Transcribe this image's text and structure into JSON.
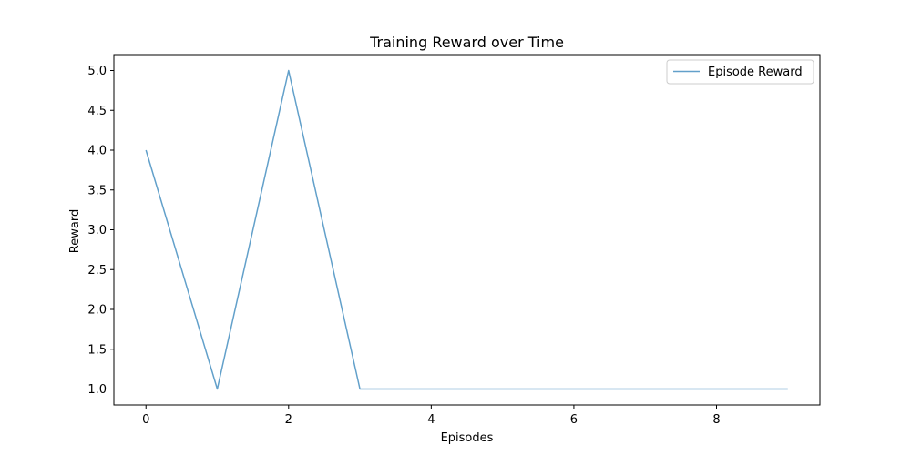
{
  "chart_data": {
    "type": "line",
    "title": "Training Reward over Time",
    "xlabel": "Episodes",
    "ylabel": "Reward",
    "x": [
      0,
      1,
      2,
      3,
      4,
      5,
      6,
      7,
      8,
      9
    ],
    "series": [
      {
        "name": "Episode Reward",
        "values": [
          4,
          1,
          5,
          1,
          1,
          1,
          1,
          1,
          1,
          1
        ],
        "color": "#1f77b4"
      }
    ],
    "xlim": [
      -0.45,
      9.45
    ],
    "ylim": [
      0.8,
      5.2
    ],
    "xticks": [
      0,
      2,
      4,
      6,
      8
    ],
    "xtick_labels": [
      "0",
      "2",
      "4",
      "6",
      "8"
    ],
    "yticks": [
      1.0,
      1.5,
      2.0,
      2.5,
      3.0,
      3.5,
      4.0,
      4.5,
      5.0
    ],
    "ytick_labels": [
      "1.0",
      "1.5",
      "2.0",
      "2.5",
      "3.0",
      "3.5",
      "4.0",
      "4.5",
      "5.0"
    ],
    "legend_position": "top-right",
    "grid": false
  }
}
